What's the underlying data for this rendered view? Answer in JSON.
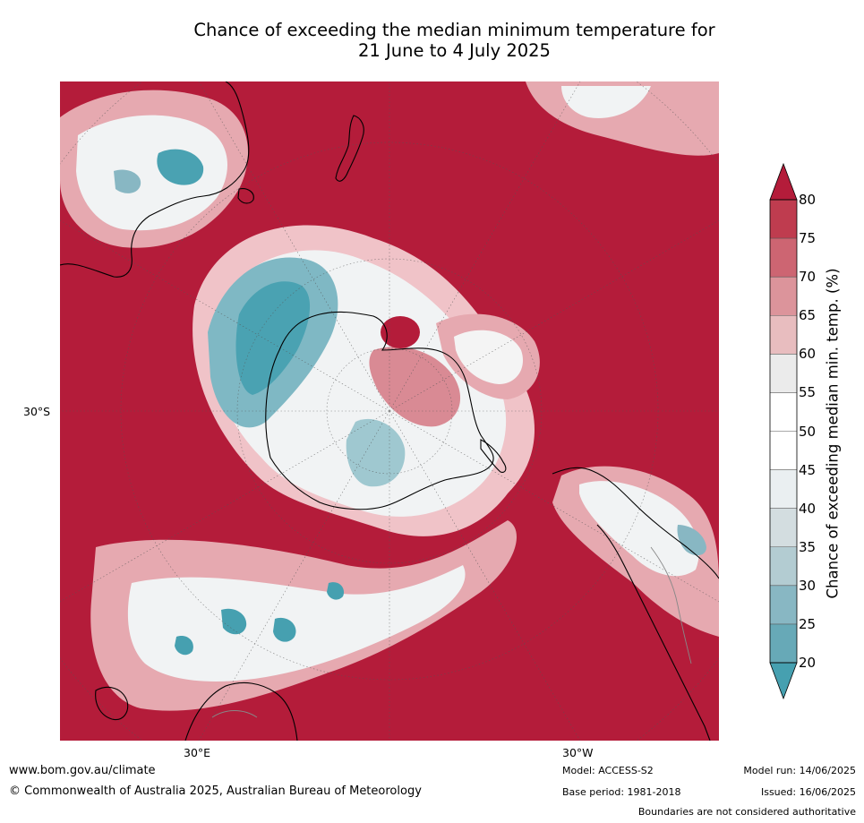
{
  "title": {
    "line1": "Chance of exceeding the median minimum temperature for",
    "line2": "21 June to 4 July 2025"
  },
  "map": {
    "projection": "south-polar stereographic",
    "latitude_label": "30°S",
    "longitude_labels": [
      "30°E",
      "30°W"
    ],
    "colors": {
      "very_high": "#b41c3a",
      "high": "#c9505f",
      "mid_high": "#e0aab0",
      "neutral": "#f2f2f2",
      "low": "#9fc8d0",
      "very_low": "#4aa2b2",
      "coast": "#000000",
      "ocean_bg": "#b41c3a"
    }
  },
  "colorbar": {
    "title": "Chance of exceeding median min. temp. (%)",
    "ticks": [
      "80",
      "75",
      "70",
      "65",
      "60",
      "55",
      "50",
      "45",
      "40",
      "35",
      "30",
      "25",
      "20"
    ],
    "colors": [
      "#b41c3a",
      "#bf3c4f",
      "#cd6572",
      "#dc949b",
      "#e8bdbf",
      "#ebebeb",
      "#ffffff",
      "#ffffff",
      "#eaeff1",
      "#d3dde0",
      "#b3ccd2",
      "#88b7c3",
      "#67a9b7",
      "#46a0b0"
    ]
  },
  "footer": {
    "website": "www.bom.gov.au/climate",
    "copyright": "© Commonwealth of Australia 2025, Australian Bureau of Meteorology",
    "model": "Model: ACCESS-S2",
    "base_period": "Base period: 1981-2018",
    "model_run": "Model run: 14/06/2025",
    "issued": "Issued: 16/06/2025",
    "disclaimer": "Boundaries are not considered authoritative"
  }
}
